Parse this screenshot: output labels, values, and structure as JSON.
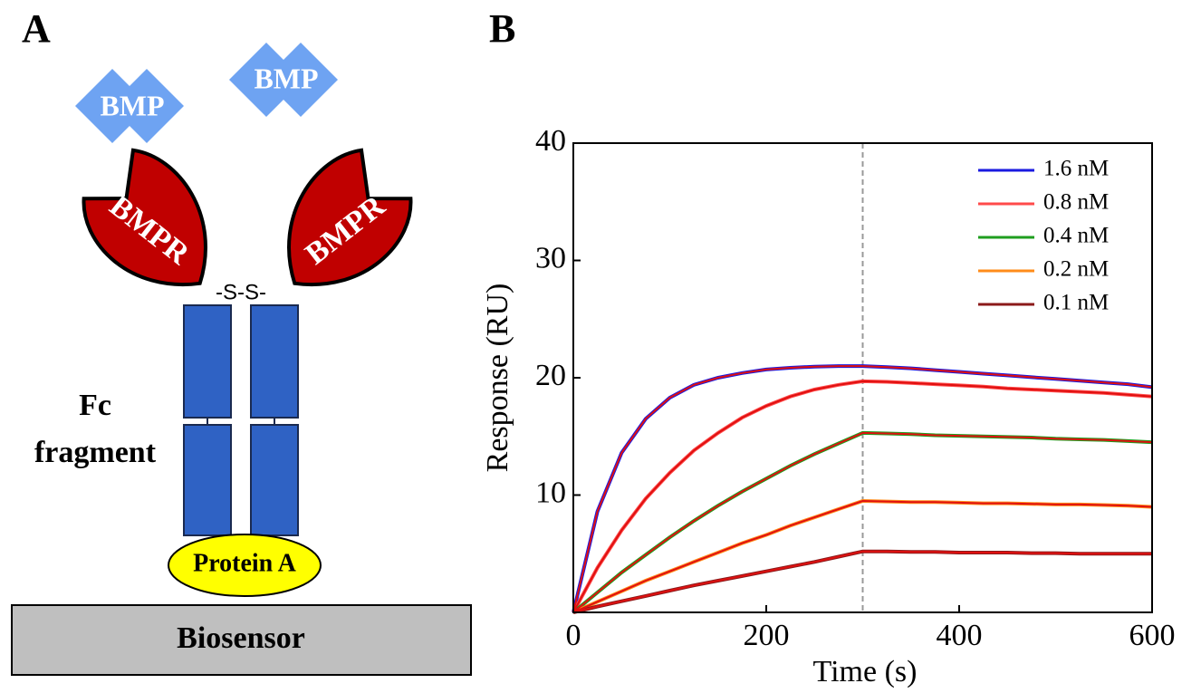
{
  "panel_a": {
    "label": "A",
    "ligands": [
      "BMP",
      "BMP"
    ],
    "receptors": [
      "BMPR",
      "BMPR"
    ],
    "disulfide": "-S-S-",
    "fc_label": [
      "Fc",
      "fragment"
    ],
    "protein": "Protein A",
    "surface": "Biosensor"
  },
  "chart_data": {
    "type": "line",
    "label": "B",
    "x_label": "Time (s)",
    "y_label": "Response (RU)",
    "x": [
      0,
      25,
      50,
      75,
      100,
      125,
      150,
      175,
      200,
      225,
      250,
      275,
      300,
      325,
      350,
      375,
      400,
      425,
      450,
      475,
      500,
      525,
      550,
      575,
      600
    ],
    "series": [
      {
        "name": "1.6 nM",
        "color": "#1a1ae0",
        "values": [
          0,
          8.6,
          13.6,
          16.5,
          18.3,
          19.4,
          20.0,
          20.4,
          20.7,
          20.85,
          20.95,
          21.0,
          21.0,
          20.9,
          20.8,
          20.65,
          20.5,
          20.35,
          20.2,
          20.05,
          19.9,
          19.75,
          19.6,
          19.45,
          19.2
        ]
      },
      {
        "name": "0.8 nM",
        "color": "#ff4a4a",
        "values": [
          0,
          3.8,
          7.0,
          9.7,
          11.9,
          13.8,
          15.3,
          16.6,
          17.6,
          18.4,
          19.0,
          19.4,
          19.7,
          19.65,
          19.55,
          19.45,
          19.35,
          19.25,
          19.1,
          19.0,
          18.9,
          18.8,
          18.7,
          18.55,
          18.4
        ]
      },
      {
        "name": "0.4 nM",
        "color": "#1f9e1f",
        "values": [
          0,
          1.7,
          3.4,
          4.9,
          6.4,
          7.8,
          9.1,
          10.3,
          11.4,
          12.5,
          13.5,
          14.4,
          15.3,
          15.25,
          15.2,
          15.1,
          15.05,
          15.0,
          14.95,
          14.9,
          14.8,
          14.75,
          14.7,
          14.6,
          14.5
        ]
      },
      {
        "name": "0.2 nM",
        "color": "#ff8c1a",
        "values": [
          0,
          0.9,
          1.8,
          2.7,
          3.5,
          4.3,
          5.1,
          5.9,
          6.6,
          7.4,
          8.1,
          8.8,
          9.5,
          9.45,
          9.4,
          9.4,
          9.35,
          9.3,
          9.3,
          9.25,
          9.2,
          9.2,
          9.15,
          9.1,
          9.0
        ]
      },
      {
        "name": "0.1 nM",
        "color": "#8b1a1a",
        "values": [
          0,
          0.5,
          0.95,
          1.4,
          1.85,
          2.3,
          2.7,
          3.1,
          3.5,
          3.9,
          4.3,
          4.75,
          5.2,
          5.2,
          5.15,
          5.15,
          5.1,
          5.1,
          5.1,
          5.05,
          5.05,
          5.0,
          5.0,
          5.0,
          5.0
        ]
      }
    ],
    "fit_color": "#e01010",
    "dashed_line_x": 300,
    "xlim": [
      0,
      600
    ],
    "ylim": [
      0,
      40
    ],
    "xticks": [
      0,
      200,
      400,
      600
    ],
    "yticks": [
      10,
      20,
      30,
      40
    ],
    "legend": "upper-right"
  }
}
